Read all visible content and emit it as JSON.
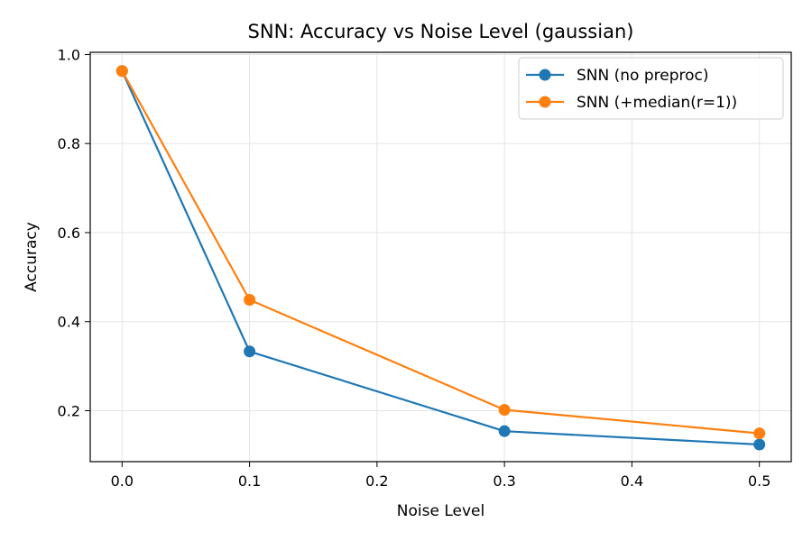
{
  "chart_data": {
    "type": "line",
    "title": "SNN: Accuracy vs Noise Level (gaussian)",
    "xlabel": "Noise Level",
    "ylabel": "Accuracy",
    "x": [
      0.0,
      0.1,
      0.3,
      0.5
    ],
    "xlim": [
      -0.025,
      0.525
    ],
    "ylim": [
      0.0855,
      1.005
    ],
    "xticks": [
      0.0,
      0.1,
      0.2,
      0.3,
      0.4,
      0.5
    ],
    "xtick_labels": [
      "0.0",
      "0.1",
      "0.2",
      "0.3",
      "0.4",
      "0.5"
    ],
    "yticks": [
      0.2,
      0.4,
      0.6,
      0.8,
      1.0
    ],
    "ytick_labels": [
      "0.2",
      "0.4",
      "0.6",
      "0.8",
      "1.0"
    ],
    "grid": true,
    "legend_position": "top-right",
    "series": [
      {
        "name": "SNN (no preproc)",
        "color": "#1f77b4",
        "values": [
          0.963,
          0.333,
          0.154,
          0.124
        ]
      },
      {
        "name": "SNN (+median(r=1))",
        "color": "#ff7f0e",
        "values": [
          0.963,
          0.449,
          0.202,
          0.149
        ]
      }
    ]
  }
}
